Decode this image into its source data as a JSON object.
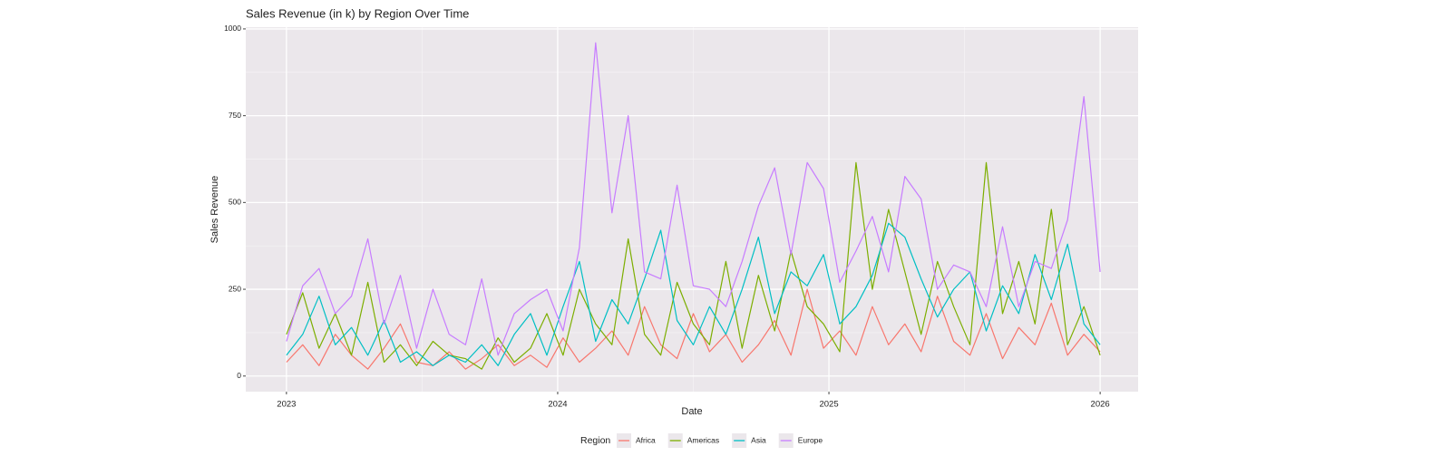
{
  "chart_data": {
    "type": "line",
    "title": "Sales Revenue (in k) by Region Over Time",
    "x_label": "Date",
    "y_label": "Sales Revenue",
    "legend_title": "Region",
    "legend_position": "bottom",
    "grid": true,
    "x": [
      2023.0,
      2023.06,
      2023.12,
      2023.18,
      2023.24,
      2023.3,
      2023.36,
      2023.42,
      2023.48,
      2023.54,
      2023.6,
      2023.66,
      2023.72,
      2023.78,
      2023.84,
      2023.9,
      2023.96,
      2024.02,
      2024.08,
      2024.14,
      2024.2,
      2024.26,
      2024.32,
      2024.38,
      2024.44,
      2024.5,
      2024.56,
      2024.62,
      2024.68,
      2024.74,
      2024.8,
      2024.86,
      2024.92,
      2024.98,
      2025.04,
      2025.1,
      2025.16,
      2025.22,
      2025.28,
      2025.34,
      2025.4,
      2025.46,
      2025.52,
      2025.58,
      2025.64,
      2025.7,
      2025.76,
      2025.82,
      2025.88,
      2025.94,
      2026.0
    ],
    "xlim": [
      2022.85,
      2026.14
    ],
    "xticks": [
      2023,
      2024,
      2025,
      2026
    ],
    "ylim": [
      -45,
      1005
    ],
    "yticks": [
      0,
      250,
      500,
      750,
      1000
    ],
    "series": [
      {
        "name": "Africa",
        "color": "#F8766D",
        "values": [
          40,
          90,
          30,
          120,
          60,
          20,
          80,
          150,
          40,
          30,
          70,
          20,
          50,
          90,
          30,
          60,
          25,
          110,
          40,
          80,
          130,
          60,
          200,
          90,
          50,
          180,
          70,
          120,
          40,
          90,
          160,
          60,
          250,
          80,
          130,
          60,
          200,
          90,
          150,
          70,
          230,
          100,
          60,
          180,
          50,
          140,
          90,
          210,
          60,
          120,
          70
        ]
      },
      {
        "name": "Americas",
        "color": "#7CAE00",
        "values": [
          120,
          240,
          80,
          180,
          60,
          270,
          40,
          90,
          30,
          100,
          60,
          50,
          20,
          110,
          40,
          80,
          180,
          60,
          250,
          150,
          90,
          395,
          120,
          60,
          270,
          150,
          90,
          330,
          80,
          290,
          130,
          360,
          200,
          150,
          70,
          615,
          250,
          480,
          300,
          120,
          330,
          200,
          90,
          615,
          180,
          330,
          150,
          480,
          90,
          200,
          60
        ]
      },
      {
        "name": "Asia",
        "color": "#00BFC4",
        "values": [
          60,
          120,
          230,
          90,
          140,
          60,
          160,
          40,
          70,
          30,
          60,
          40,
          90,
          30,
          120,
          180,
          60,
          200,
          330,
          100,
          220,
          150,
          280,
          420,
          160,
          90,
          200,
          120,
          250,
          400,
          180,
          300,
          260,
          350,
          150,
          200,
          290,
          440,
          400,
          280,
          170,
          250,
          300,
          130,
          260,
          180,
          350,
          220,
          380,
          150,
          90
        ]
      },
      {
        "name": "Europe",
        "color": "#C77CFF",
        "values": [
          100,
          260,
          310,
          180,
          230,
          395,
          150,
          290,
          80,
          250,
          120,
          90,
          280,
          60,
          180,
          220,
          250,
          130,
          370,
          960,
          470,
          750,
          300,
          280,
          550,
          260,
          250,
          200,
          330,
          490,
          600,
          350,
          615,
          540,
          270,
          360,
          460,
          300,
          575,
          510,
          250,
          320,
          300,
          200,
          430,
          200,
          330,
          310,
          450,
          805,
          300
        ]
      }
    ]
  }
}
